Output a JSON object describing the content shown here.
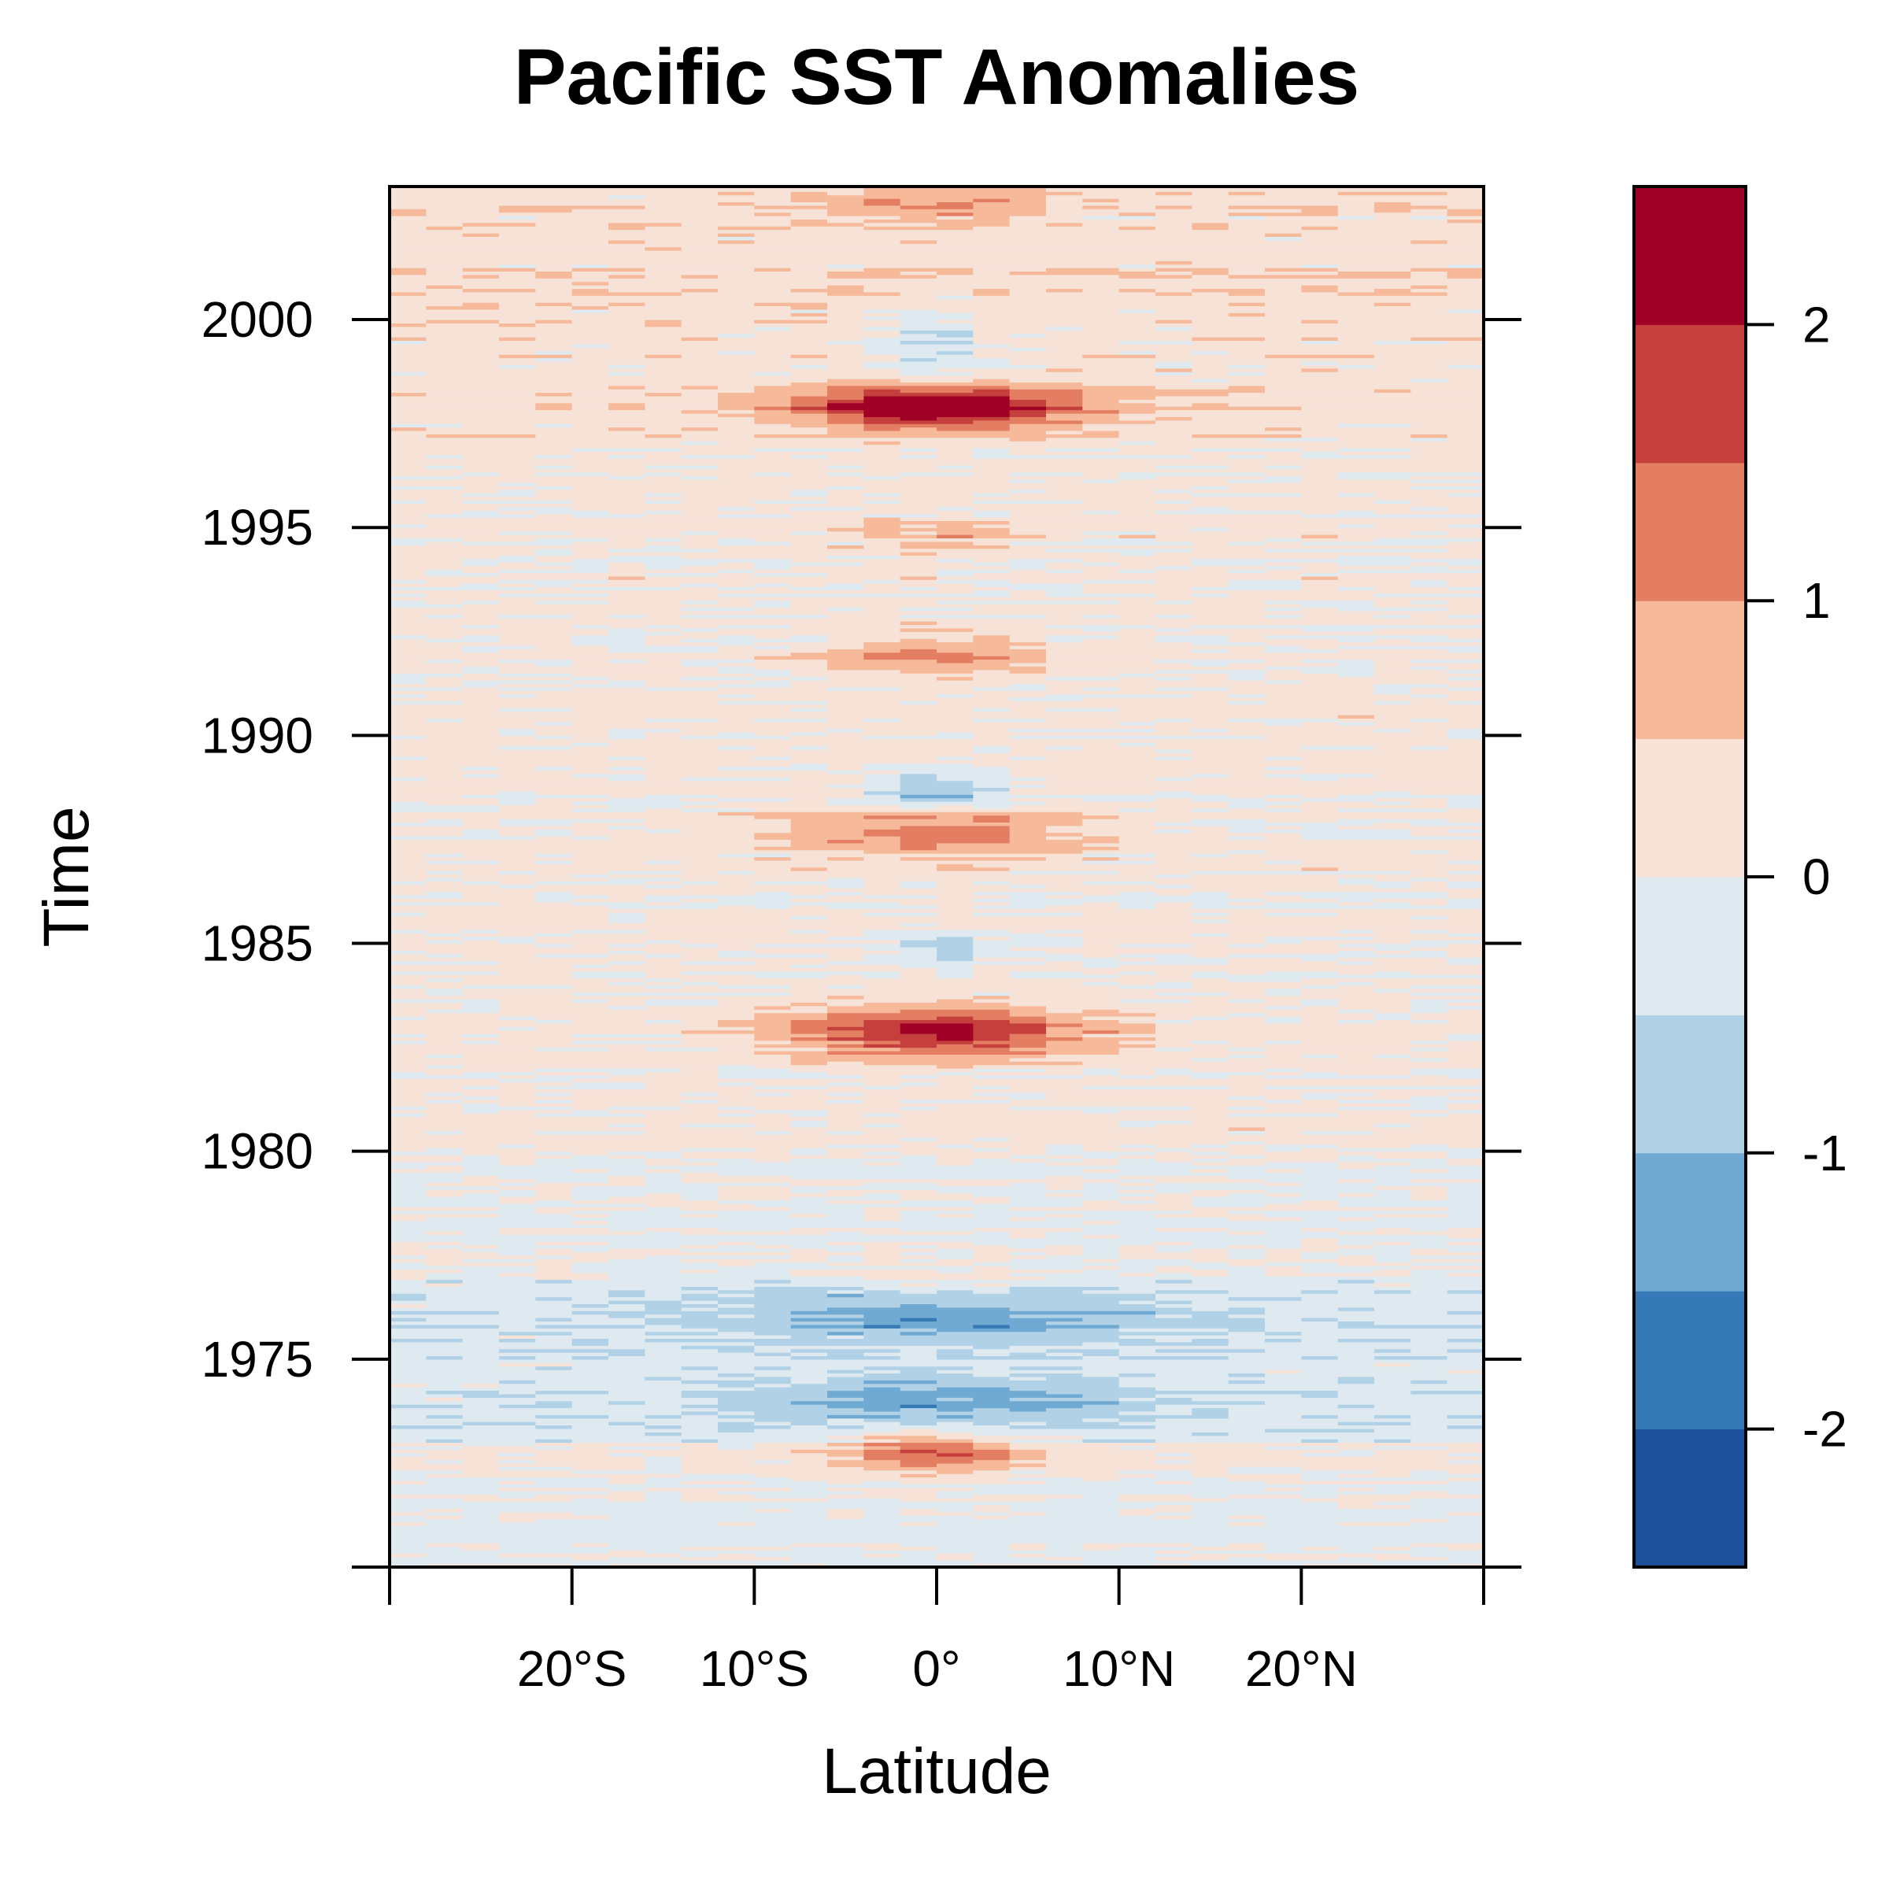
{
  "chart_data": {
    "type": "heatmap",
    "title": "Pacific SST Anomalies",
    "xlabel": "Latitude",
    "ylabel": "Time",
    "x_ticks": [
      {
        "value": -20,
        "label": "20°S"
      },
      {
        "value": -10,
        "label": "10°S"
      },
      {
        "value": 0,
        "label": "0°"
      },
      {
        "value": 10,
        "label": "10°N"
      },
      {
        "value": 20,
        "label": "20°N"
      }
    ],
    "y_ticks": [
      {
        "value": 1975,
        "label": "1975"
      },
      {
        "value": 1980,
        "label": "1980"
      },
      {
        "value": 1985,
        "label": "1985"
      },
      {
        "value": 1990,
        "label": "1990"
      },
      {
        "value": 1995,
        "label": "1995"
      },
      {
        "value": 2000,
        "label": "2000"
      }
    ],
    "xlim": [
      -30,
      30
    ],
    "ylim": [
      1970,
      2003.2
    ],
    "x_resolution_deg": 2,
    "y_resolution_months": 1,
    "color_scale": {
      "breaks": [
        -2.5,
        -2.0,
        -1.5,
        -1.0,
        -0.5,
        0.0,
        0.5,
        1.0,
        1.5,
        2.0,
        2.5
      ],
      "colors": [
        "#1D4F9A",
        "#3679B7",
        "#70A9D2",
        "#B0D1E6",
        "#DFEAF0",
        "#F7E2D8",
        "#F6BA9A",
        "#E47E63",
        "#C5403C",
        "#A00025"
      ],
      "tick_values": [
        -2,
        -1,
        0,
        1,
        2
      ],
      "tick_labels": [
        "-2",
        "-1",
        "0",
        "1",
        "2"
      ]
    },
    "events": [
      {
        "year": 1972.8,
        "amplitude": 1.4,
        "duration_years": 0.55,
        "meridional_width_deg": 5.5
      },
      {
        "year": 1974.0,
        "amplitude": -0.95,
        "duration_years": 0.6,
        "meridional_width_deg": 11
      },
      {
        "year": 1976.0,
        "amplitude": -1.0,
        "duration_years": 0.6,
        "meridional_width_deg": 13
      },
      {
        "year": 1976.9,
        "amplitude": 0.4,
        "duration_years": 0.4,
        "meridional_width_deg": 4
      },
      {
        "year": 1982.9,
        "amplitude": 2.05,
        "duration_years": 0.6,
        "meridional_width_deg": 8
      },
      {
        "year": 1984.9,
        "amplitude": -0.7,
        "duration_years": 0.5,
        "meridional_width_deg": 3
      },
      {
        "year": 1987.7,
        "amplitude": 1.25,
        "duration_years": 0.55,
        "meridional_width_deg": 8
      },
      {
        "year": 1988.7,
        "amplitude": -1.15,
        "duration_years": 0.45,
        "meridional_width_deg": 4
      },
      {
        "year": 1991.9,
        "amplitude": 1.0,
        "duration_years": 0.5,
        "meridional_width_deg": 6
      },
      {
        "year": 1994.8,
        "amplitude": 0.65,
        "duration_years": 0.4,
        "meridional_width_deg": 5
      },
      {
        "year": 1997.9,
        "amplitude": 2.45,
        "duration_years": 0.5,
        "meridional_width_deg": 7.5
      },
      {
        "year": 1999.5,
        "amplitude": -0.8,
        "duration_years": 0.8,
        "meridional_width_deg": 3
      },
      {
        "year": 2002.8,
        "amplitude": 0.8,
        "duration_years": 0.4,
        "meridional_width_deg": 6
      }
    ],
    "background_anomaly_by_period": [
      {
        "from": 1970,
        "to": 1972,
        "value": -0.1
      },
      {
        "from": 1972,
        "to": 1973,
        "value": 0.1
      },
      {
        "from": 1973,
        "to": 1977,
        "value": -0.3
      },
      {
        "from": 1977,
        "to": 1980,
        "value": -0.05
      },
      {
        "from": 1980,
        "to": 1997,
        "value": 0.12
      },
      {
        "from": 1997,
        "to": 2003.2,
        "value": 0.3
      }
    ]
  }
}
